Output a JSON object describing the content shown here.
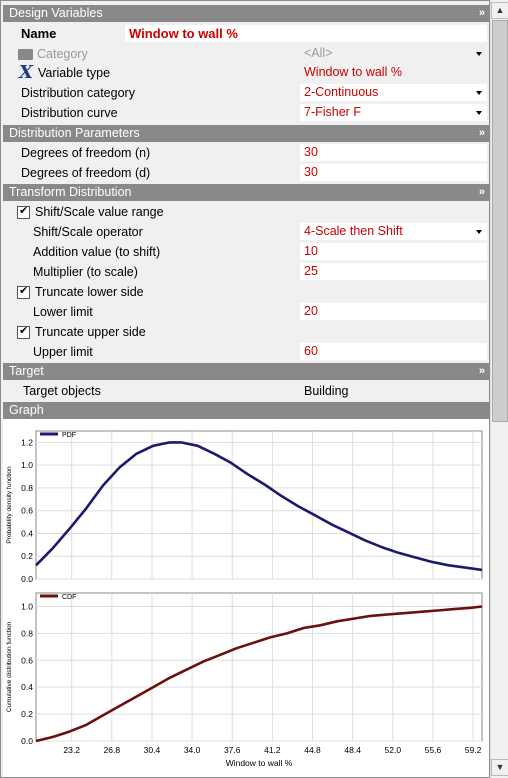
{
  "design_variables": {
    "header": "Design Variables",
    "name_label": "Name",
    "name_value": "Window to wall %",
    "category_label": "Category",
    "category_value": "<All>",
    "variable_type_label": "Variable type",
    "variable_type_value": "Window to wall %",
    "distribution_category_label": "Distribution category",
    "distribution_category_value": "2-Continuous",
    "distribution_curve_label": "Distribution curve",
    "distribution_curve_value": "7-Fisher F"
  },
  "distribution_parameters": {
    "header": "Distribution Parameters",
    "dof_n_label": "Degrees of freedom (n)",
    "dof_n_value": "30",
    "dof_d_label": "Degrees of freedom (d)",
    "dof_d_value": "30"
  },
  "transform_distribution": {
    "header": "Transform Distribution",
    "shift_scale_label": "Shift/Scale value range",
    "shift_scale_checked": true,
    "operator_label": "Shift/Scale operator",
    "operator_value": "4-Scale then Shift",
    "addition_label": "Addition value (to shift)",
    "addition_value": "10",
    "multiplier_label": "Multiplier (to scale)",
    "multiplier_value": "25",
    "truncate_lower_label": "Truncate lower side",
    "truncate_lower_checked": true,
    "lower_limit_label": "Lower limit",
    "lower_limit_value": "20",
    "truncate_upper_label": "Truncate upper side",
    "truncate_upper_checked": true,
    "upper_limit_label": "Upper limit",
    "upper_limit_value": "60"
  },
  "target": {
    "header": "Target",
    "objects_label": "Target objects",
    "objects_value": "Building"
  },
  "graph": {
    "header": "Graph"
  },
  "colors": {
    "header_bg": "#898989",
    "value_text": "#cc0000",
    "pdf_line": "#1a1a6e",
    "cdf_line": "#6b0f0f"
  },
  "chart_data": [
    {
      "type": "line",
      "legend": [
        "PDF"
      ],
      "ylabel": "Probability density function",
      "xlabel": "",
      "xlim": [
        20,
        60
      ],
      "ylim": [
        0,
        1.3
      ],
      "y_ticks": [
        "0.0",
        "0.2",
        "0.4",
        "0.6",
        "0.8",
        "1.0",
        "1.2"
      ],
      "y_tick_values": [
        0.0,
        0.2,
        0.4,
        0.6,
        0.8,
        1.0,
        1.2
      ],
      "series": [
        {
          "x": [
            20.0,
            21.5,
            23.0,
            24.5,
            26.0,
            27.5,
            29.0,
            30.5,
            32.0,
            33.0,
            34.5,
            36.0,
            37.5,
            39.0,
            40.5,
            42.0,
            43.5,
            45.0,
            46.5,
            48.0,
            49.5,
            51.0,
            52.5,
            54.0,
            55.5,
            57.0,
            58.5,
            60.0
          ],
          "y": [
            0.12,
            0.27,
            0.44,
            0.62,
            0.82,
            0.98,
            1.1,
            1.17,
            1.2,
            1.2,
            1.17,
            1.1,
            1.02,
            0.92,
            0.83,
            0.73,
            0.64,
            0.56,
            0.48,
            0.41,
            0.34,
            0.28,
            0.23,
            0.19,
            0.15,
            0.12,
            0.1,
            0.08
          ]
        }
      ]
    },
    {
      "type": "line",
      "legend": [
        "CDF"
      ],
      "ylabel": "Cumulative distribution function",
      "xlabel": "Window to wall %",
      "xlim": [
        20,
        60
      ],
      "ylim": [
        0,
        1.1
      ],
      "y_ticks": [
        "0.0",
        "0.2",
        "0.4",
        "0.6",
        "0.8",
        "1.0"
      ],
      "y_tick_values": [
        0.0,
        0.2,
        0.4,
        0.6,
        0.8,
        1.0
      ],
      "x_ticks": [
        "23.2",
        "26.8",
        "30.4",
        "34.0",
        "37.6",
        "41.2",
        "44.8",
        "48.4",
        "52.0",
        "55.6",
        "59.2"
      ],
      "x_tick_values": [
        23.2,
        26.8,
        30.4,
        34.0,
        37.6,
        41.2,
        44.8,
        48.4,
        52.0,
        55.6,
        59.2
      ],
      "series": [
        {
          "x": [
            20.0,
            21.5,
            23.0,
            24.5,
            26.0,
            27.5,
            29.0,
            30.5,
            32.0,
            33.5,
            35.0,
            36.5,
            38.0,
            39.5,
            41.0,
            42.5,
            44.0,
            45.5,
            47.0,
            48.5,
            50.0,
            51.5,
            53.0,
            54.5,
            56.0,
            57.5,
            59.0,
            60.0
          ],
          "y": [
            0.0,
            0.03,
            0.07,
            0.12,
            0.19,
            0.26,
            0.33,
            0.4,
            0.47,
            0.53,
            0.59,
            0.64,
            0.69,
            0.73,
            0.77,
            0.8,
            0.84,
            0.86,
            0.89,
            0.91,
            0.93,
            0.94,
            0.95,
            0.96,
            0.97,
            0.98,
            0.99,
            1.0
          ]
        }
      ]
    }
  ]
}
